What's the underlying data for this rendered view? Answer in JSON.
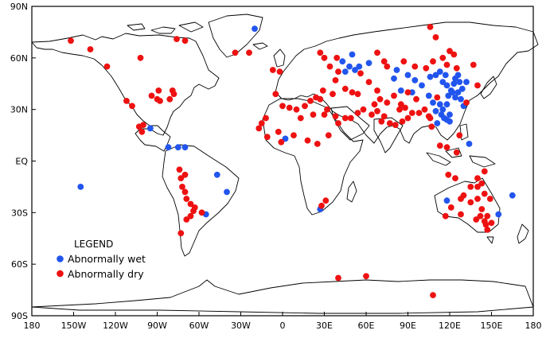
{
  "map": {
    "projection": "equirectangular",
    "lon_range": [
      -180,
      180
    ],
    "lat_range": [
      -90,
      90
    ],
    "x_ticks": [
      {
        "lon": -180,
        "label": "180"
      },
      {
        "lon": -150,
        "label": "150W"
      },
      {
        "lon": -120,
        "label": "120W"
      },
      {
        "lon": -90,
        "label": "90W"
      },
      {
        "lon": -60,
        "label": "60W"
      },
      {
        "lon": -30,
        "label": "30W"
      },
      {
        "lon": 0,
        "label": "0"
      },
      {
        "lon": 30,
        "label": "30E"
      },
      {
        "lon": 60,
        "label": "60E"
      },
      {
        "lon": 90,
        "label": "90E"
      },
      {
        "lon": 120,
        "label": "120E"
      },
      {
        "lon": 150,
        "label": "150E"
      },
      {
        "lon": 180,
        "label": "180"
      }
    ],
    "y_ticks": [
      {
        "lat": 90,
        "label": "90N"
      },
      {
        "lat": 60,
        "label": "60N"
      },
      {
        "lat": 30,
        "label": "30N"
      },
      {
        "lat": 0,
        "label": "EQ"
      },
      {
        "lat": -30,
        "label": "30S"
      },
      {
        "lat": -60,
        "label": "60S"
      },
      {
        "lat": -90,
        "label": "90S"
      }
    ]
  },
  "legend": {
    "title": "LEGEND",
    "items": [
      {
        "label": "Abnormally wet",
        "color": "#2255ee"
      },
      {
        "label": "Abnormally dry",
        "color": "#ee1111"
      }
    ]
  },
  "chart_data": {
    "type": "scatter",
    "colors": {
      "wet": "#2255ee",
      "dry": "#ee1111"
    },
    "series": [
      {
        "name": "Abnormally wet",
        "points": [
          [
            -20,
            77
          ],
          [
            -145,
            -15
          ],
          [
            -95,
            19
          ],
          [
            -82,
            8
          ],
          [
            -75,
            8
          ],
          [
            -70,
            8
          ],
          [
            -47,
            -8
          ],
          [
            -40,
            -18
          ],
          [
            -55,
            -31
          ],
          [
            2,
            13
          ],
          [
            27,
            -28
          ],
          [
            43,
            58
          ],
          [
            50,
            62
          ],
          [
            48,
            55
          ],
          [
            45,
            52
          ],
          [
            52,
            53
          ],
          [
            55,
            55
          ],
          [
            80,
            48
          ],
          [
            62,
            57
          ],
          [
            82,
            53
          ],
          [
            90,
            50
          ],
          [
            95,
            47
          ],
          [
            100,
            44
          ],
          [
            106,
            49
          ],
          [
            110,
            50
          ],
          [
            113,
            52
          ],
          [
            115,
            46
          ],
          [
            105,
            38
          ],
          [
            85,
            41
          ],
          [
            93,
            40
          ],
          [
            117,
            50
          ],
          [
            118,
            44
          ],
          [
            121,
            41
          ],
          [
            123,
            45
          ],
          [
            124,
            48
          ],
          [
            127,
            46
          ],
          [
            129,
            42
          ],
          [
            124,
            37
          ],
          [
            119,
            38
          ],
          [
            126,
            40
          ],
          [
            118,
            33
          ],
          [
            113,
            33
          ],
          [
            108,
            34
          ],
          [
            110,
            29
          ],
          [
            114,
            27
          ],
          [
            116,
            25
          ],
          [
            118,
            24
          ],
          [
            120,
            23
          ],
          [
            111,
            22
          ],
          [
            115,
            30
          ],
          [
            128,
            36
          ],
          [
            130,
            32
          ],
          [
            122,
            40
          ],
          [
            126,
            50
          ],
          [
            132,
            46
          ],
          [
            120,
            27
          ],
          [
            134,
            10
          ],
          [
            118,
            -23
          ],
          [
            165,
            -20
          ],
          [
            155,
            -31
          ]
        ]
      },
      {
        "name": "Abnormally dry",
        "points": [
          [
            -152,
            70
          ],
          [
            -138,
            65
          ],
          [
            -126,
            55
          ],
          [
            -102,
            60
          ],
          [
            -76,
            71
          ],
          [
            -70,
            70
          ],
          [
            -34,
            63
          ],
          [
            -24,
            63
          ],
          [
            -112,
            35
          ],
          [
            -108,
            32
          ],
          [
            -103,
            20
          ],
          [
            -101,
            17
          ],
          [
            -94,
            38
          ],
          [
            -89,
            41
          ],
          [
            -90,
            36
          ],
          [
            -79,
            41
          ],
          [
            -78,
            39
          ],
          [
            -81,
            36
          ],
          [
            -88,
            35
          ],
          [
            -100,
            21
          ],
          [
            -74,
            -5
          ],
          [
            -70,
            -8
          ],
          [
            -73,
            -10
          ],
          [
            -72,
            -15
          ],
          [
            -70,
            -18
          ],
          [
            -69,
            -22
          ],
          [
            -66,
            -25
          ],
          [
            -63,
            -27
          ],
          [
            -64,
            -29
          ],
          [
            -66,
            -32
          ],
          [
            -69,
            -34
          ],
          [
            -73,
            -42
          ],
          [
            -58,
            -30
          ],
          [
            -7,
            53
          ],
          [
            -2,
            52
          ],
          [
            -5,
            39
          ],
          [
            0,
            32
          ],
          [
            5,
            31
          ],
          [
            10,
            30
          ],
          [
            16,
            32
          ],
          [
            20,
            35
          ],
          [
            24,
            37
          ],
          [
            27,
            36
          ],
          [
            29,
            41
          ],
          [
            36,
            39
          ],
          [
            32,
            30
          ],
          [
            30,
            27
          ],
          [
            22,
            27
          ],
          [
            13,
            25
          ],
          [
            -12,
            25
          ],
          [
            -15,
            22
          ],
          [
            -17,
            19
          ],
          [
            -11,
            14
          ],
          [
            -3,
            17
          ],
          [
            8,
            15
          ],
          [
            18,
            12
          ],
          [
            25,
            10
          ],
          [
            33,
            15
          ],
          [
            -1,
            11
          ],
          [
            38,
            26
          ],
          [
            40,
            22
          ],
          [
            45,
            25
          ],
          [
            49,
            25
          ],
          [
            54,
            28
          ],
          [
            58,
            30
          ],
          [
            64,
            27
          ],
          [
            68,
            29
          ],
          [
            73,
            26
          ],
          [
            77,
            22
          ],
          [
            81,
            21
          ],
          [
            71,
            23
          ],
          [
            66,
            33
          ],
          [
            70,
            36
          ],
          [
            75,
            34
          ],
          [
            80,
            38
          ],
          [
            68,
            41
          ],
          [
            62,
            46
          ],
          [
            56,
            51
          ],
          [
            50,
            40
          ],
          [
            45,
            42
          ],
          [
            54,
            39
          ],
          [
            38,
            47
          ],
          [
            40,
            52
          ],
          [
            34,
            55
          ],
          [
            39,
            60
          ],
          [
            30,
            60
          ],
          [
            27,
            63
          ],
          [
            68,
            63
          ],
          [
            73,
            58
          ],
          [
            75,
            55
          ],
          [
            87,
            58
          ],
          [
            95,
            55
          ],
          [
            103,
            54
          ],
          [
            108,
            58
          ],
          [
            115,
            60
          ],
          [
            120,
            64
          ],
          [
            110,
            72
          ],
          [
            118,
            56
          ],
          [
            125,
            54
          ],
          [
            137,
            56
          ],
          [
            123,
            62
          ],
          [
            140,
            44
          ],
          [
            132,
            34
          ],
          [
            88,
            31
          ],
          [
            84,
            30
          ],
          [
            93,
            28
          ],
          [
            98,
            28
          ],
          [
            102,
            30
          ],
          [
            105,
            26
          ],
          [
            85,
            33
          ],
          [
            90,
            40
          ],
          [
            96,
            36
          ],
          [
            90,
            25
          ],
          [
            86,
            23
          ],
          [
            111,
            37
          ],
          [
            106,
            25
          ],
          [
            107,
            20
          ],
          [
            113,
            9
          ],
          [
            118,
            8
          ],
          [
            125,
            5
          ],
          [
            127,
            15
          ],
          [
            119,
            -8
          ],
          [
            124,
            -10
          ],
          [
            140,
            -10
          ],
          [
            145,
            -6
          ],
          [
            128,
            -22
          ],
          [
            121,
            -27
          ],
          [
            117,
            -32
          ],
          [
            128,
            -31
          ],
          [
            135,
            -24
          ],
          [
            140,
            -22
          ],
          [
            145,
            -19
          ],
          [
            149,
            -22
          ],
          [
            143,
            -28
          ],
          [
            142,
            -32
          ],
          [
            139,
            -34
          ],
          [
            147,
            -32
          ],
          [
            145,
            -35
          ],
          [
            146,
            -37
          ],
          [
            150,
            -36
          ],
          [
            147,
            -40
          ],
          [
            130,
            -20
          ],
          [
            135,
            -15
          ],
          [
            140,
            -15
          ],
          [
            143,
            -13
          ],
          [
            28,
            -26
          ],
          [
            31,
            -23
          ],
          [
            40,
            -68
          ],
          [
            60,
            -67
          ],
          [
            108,
            -78
          ],
          [
            106,
            78
          ]
        ]
      }
    ]
  }
}
